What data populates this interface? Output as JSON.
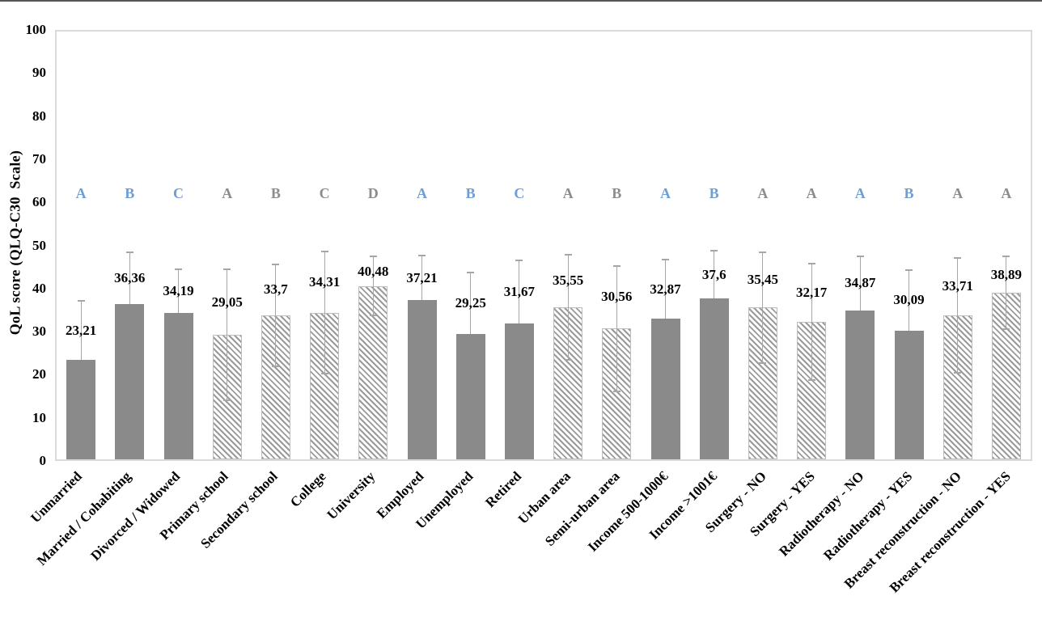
{
  "chart_data": {
    "type": "bar",
    "title": "",
    "xlabel": "",
    "ylabel": "QoL score (QLQ-C30  Scale)",
    "ylim": [
      0,
      100
    ],
    "yticks": [
      0,
      10,
      20,
      30,
      40,
      50,
      60,
      70,
      80,
      90,
      100
    ],
    "grid": false,
    "legend_position": "none",
    "decimal_separator": ",",
    "error_bars": "symmetric, both directions, with caps",
    "significance_letter_row_value": 62.5,
    "colors": {
      "bar_solid": "#8a8a8a",
      "hatch_line": "#9a9a9a",
      "hatch_border": "#bdbdbd",
      "error_bar": "#a6a6a6",
      "plot_border": "#d9d9d9",
      "letter_blue": "#6f9ed6",
      "letter_gray": "#8c8c8c",
      "text": "#000000"
    },
    "points": [
      {
        "category": "Unmarried",
        "display": "23,21",
        "value": 23.21,
        "error": 13.8,
        "fill": "solid",
        "letter": "A",
        "letter_color": "blue"
      },
      {
        "category": "Married / Cohabiting",
        "display": "36,36",
        "value": 36.36,
        "error": 12.1,
        "fill": "solid",
        "letter": "B",
        "letter_color": "blue"
      },
      {
        "category": "Divorced / Widowed",
        "display": "34,19",
        "value": 34.19,
        "error": 10.3,
        "fill": "solid",
        "letter": "C",
        "letter_color": "blue"
      },
      {
        "category": "Primary school",
        "display": "29,05",
        "value": 29.05,
        "error": 15.3,
        "fill": "hatched",
        "letter": "A",
        "letter_color": "gray"
      },
      {
        "category": "Secondary school",
        "display": "33,7",
        "value": 33.7,
        "error": 11.9,
        "fill": "hatched",
        "letter": "B",
        "letter_color": "gray"
      },
      {
        "category": "College",
        "display": "34,31",
        "value": 34.31,
        "error": 14.3,
        "fill": "hatched",
        "letter": "C",
        "letter_color": "gray"
      },
      {
        "category": "University",
        "display": "40,48",
        "value": 40.48,
        "error": 6.9,
        "fill": "hatched",
        "letter": "D",
        "letter_color": "gray"
      },
      {
        "category": "Employed",
        "display": "37,21",
        "value": 37.21,
        "error": 10.4,
        "fill": "solid",
        "letter": "A",
        "letter_color": "blue"
      },
      {
        "category": "Unemployed",
        "display": "29,25",
        "value": 29.25,
        "error": 14.4,
        "fill": "solid",
        "letter": "B",
        "letter_color": "blue"
      },
      {
        "category": "Retired",
        "display": "31,67",
        "value": 31.67,
        "error": 14.9,
        "fill": "solid",
        "letter": "C",
        "letter_color": "blue"
      },
      {
        "category": "Urban area",
        "display": "35,55",
        "value": 35.55,
        "error": 12.3,
        "fill": "hatched",
        "letter": "A",
        "letter_color": "gray"
      },
      {
        "category": "Semi-urban area",
        "display": "30,56",
        "value": 30.56,
        "error": 14.7,
        "fill": "hatched",
        "letter": "B",
        "letter_color": "gray"
      },
      {
        "category": "Income 500-1000€",
        "display": "32,87",
        "value": 32.87,
        "error": 13.8,
        "fill": "solid",
        "letter": "A",
        "letter_color": "blue"
      },
      {
        "category": "Income >1001€",
        "display": "37,6",
        "value": 37.6,
        "error": 11.1,
        "fill": "solid",
        "letter": "B",
        "letter_color": "blue"
      },
      {
        "category": "Surgery - NO",
        "display": "35,45",
        "value": 35.45,
        "error": 12.9,
        "fill": "hatched",
        "letter": "A",
        "letter_color": "gray"
      },
      {
        "category": "Surgery - YES",
        "display": "32,17",
        "value": 32.17,
        "error": 13.6,
        "fill": "hatched",
        "letter": "A",
        "letter_color": "gray"
      },
      {
        "category": "Radiotherapy - NO",
        "display": "34,87",
        "value": 34.87,
        "error": 12.6,
        "fill": "solid",
        "letter": "A",
        "letter_color": "blue"
      },
      {
        "category": "Radiotherapy - YES",
        "display": "30,09",
        "value": 30.09,
        "error": 14.2,
        "fill": "solid",
        "letter": "B",
        "letter_color": "blue"
      },
      {
        "category": "Breast reconstruction - NO",
        "display": "33,71",
        "value": 33.71,
        "error": 13.4,
        "fill": "hatched",
        "letter": "A",
        "letter_color": "gray"
      },
      {
        "category": "Breast reconstruction - YES",
        "display": "38,89",
        "value": 38.89,
        "error": 8.5,
        "fill": "hatched",
        "letter": "A",
        "letter_color": "gray"
      }
    ]
  }
}
